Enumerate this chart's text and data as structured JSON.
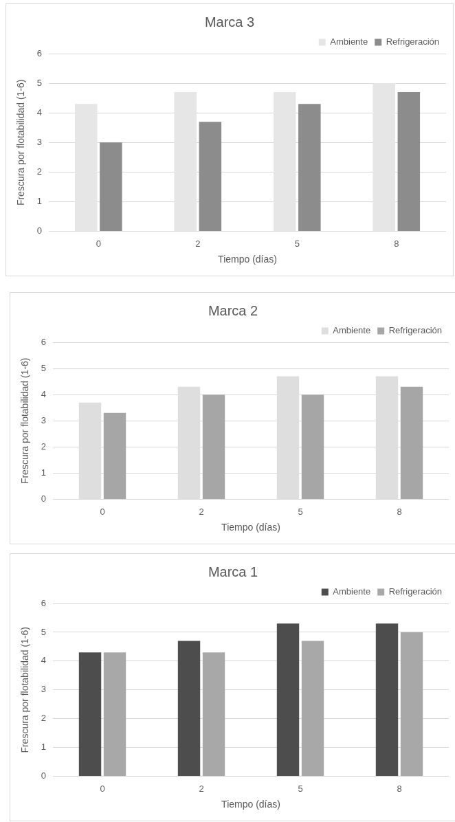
{
  "chart_data": [
    {
      "type": "bar",
      "title": "Marca 3",
      "xlabel": "Tiempo (días)",
      "ylabel": "Frescura por flotabilidad (1-6)",
      "categories": [
        "0",
        "2",
        "5",
        "8"
      ],
      "series": [
        {
          "name": "Ambiente",
          "color": "#e6e6e6",
          "values": [
            4.3,
            4.7,
            4.7,
            5.0
          ]
        },
        {
          "name": "Refrigeración",
          "color": "#8c8c8c",
          "values": [
            3.0,
            3.7,
            4.3,
            4.7
          ]
        }
      ],
      "ylim": [
        0,
        6
      ],
      "yticks": [
        0,
        1,
        2,
        3,
        4,
        5,
        6
      ],
      "grid": "y",
      "legend": "top right"
    },
    {
      "type": "bar",
      "title": "Marca 2",
      "xlabel": "Tiempo (días)",
      "ylabel": "Frescura por flotabilidad (1-6)",
      "categories": [
        "0",
        "2",
        "5",
        "8"
      ],
      "series": [
        {
          "name": "Ambiente",
          "color": "#dedede",
          "values": [
            3.7,
            4.3,
            4.7,
            4.7
          ]
        },
        {
          "name": "Refrigeración",
          "color": "#a6a6a6",
          "values": [
            3.3,
            4.0,
            4.0,
            4.3
          ]
        }
      ],
      "ylim": [
        0,
        6
      ],
      "yticks": [
        0,
        1,
        2,
        3,
        4,
        5,
        6
      ],
      "grid": "y",
      "legend": "top right"
    },
    {
      "type": "bar",
      "title": "Marca 1",
      "xlabel": "Tiempo (días)",
      "ylabel": "Frescura por flotabilidad (1-6)",
      "categories": [
        "0",
        "2",
        "5",
        "8"
      ],
      "series": [
        {
          "name": "Ambiente",
          "color": "#4d4d4d",
          "values": [
            4.3,
            4.7,
            5.3,
            5.3
          ]
        },
        {
          "name": "Refrigeración",
          "color": "#a8a8a8",
          "values": [
            4.3,
            4.3,
            4.7,
            5.0
          ]
        }
      ],
      "ylim": [
        0,
        6
      ],
      "yticks": [
        0,
        1,
        2,
        3,
        4,
        5,
        6
      ],
      "grid": "y",
      "legend": "top right"
    }
  ]
}
